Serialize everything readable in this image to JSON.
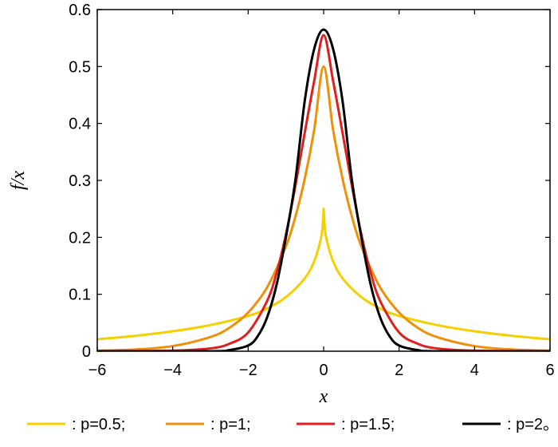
{
  "chart_data": {
    "type": "line",
    "xlabel": "x",
    "ylabel": "f/x",
    "xlim": [
      -6,
      6
    ],
    "ylim": [
      0,
      0.6
    ],
    "xticks": [
      -6,
      -4,
      -2,
      0,
      2,
      4,
      6
    ],
    "xtick_labels": [
      "−6",
      "−4",
      "−2",
      "0",
      "2",
      "4",
      "6"
    ],
    "yticks": [
      0,
      0.1,
      0.2,
      0.3,
      0.4,
      0.5,
      0.6
    ],
    "ytick_labels": [
      "0",
      "0.1",
      "0.2",
      "0.3",
      "0.4",
      "0.5",
      "0.6"
    ],
    "grid": false,
    "legend_position": "bottom",
    "series": [
      {
        "legend": ": p=0.5;",
        "color": "#f5d000",
        "x": [
          -6,
          -5,
          -4,
          -3,
          -2,
          -1.5,
          -1,
          -0.5,
          -0.25,
          -0.1,
          -0.03,
          0,
          0.03,
          0.1,
          0.25,
          0.5,
          1,
          1.5,
          2,
          3,
          4,
          5,
          6
        ],
        "y": [
          0.021,
          0.027,
          0.035,
          0.046,
          0.062,
          0.075,
          0.095,
          0.128,
          0.158,
          0.19,
          0.215,
          0.25,
          0.215,
          0.19,
          0.158,
          0.128,
          0.095,
          0.075,
          0.062,
          0.046,
          0.035,
          0.027,
          0.021
        ]
      },
      {
        "legend": ": p=1;",
        "color": "#f0900a",
        "x": [
          -6,
          -5,
          -4,
          -3,
          -2.5,
          -2,
          -1.5,
          -1,
          -0.75,
          -0.5,
          -0.25,
          0,
          0.25,
          0.5,
          0.75,
          1,
          1.5,
          2,
          2.5,
          3,
          4,
          5,
          6
        ],
        "y": [
          0.001,
          0.003,
          0.009,
          0.025,
          0.041,
          0.068,
          0.112,
          0.184,
          0.236,
          0.303,
          0.389,
          0.5,
          0.389,
          0.303,
          0.236,
          0.184,
          0.112,
          0.068,
          0.041,
          0.025,
          0.009,
          0.003,
          0.001
        ]
      },
      {
        "legend": ": p=1.5;",
        "color": "#e0201e",
        "x": [
          -6,
          -4,
          -3,
          -2.5,
          -2,
          -1.5,
          -1.25,
          -1,
          -0.75,
          -0.5,
          -0.25,
          0,
          0.25,
          0.5,
          0.75,
          1,
          1.25,
          1.5,
          2,
          2.5,
          3,
          4,
          6
        ],
        "y": [
          0,
          0.001,
          0.005,
          0.013,
          0.033,
          0.088,
          0.137,
          0.205,
          0.29,
          0.384,
          0.475,
          0.555,
          0.475,
          0.384,
          0.29,
          0.205,
          0.137,
          0.088,
          0.033,
          0.013,
          0.005,
          0.001,
          0
        ]
      },
      {
        "legend": ": p=2。",
        "color": "#000000",
        "x": [
          -6,
          -3,
          -2.5,
          -2,
          -1.75,
          -1.5,
          -1.25,
          -1,
          -0.75,
          -0.5,
          -0.25,
          0,
          0.25,
          0.5,
          0.75,
          1,
          1.25,
          1.5,
          1.75,
          2,
          2.5,
          3,
          6
        ],
        "y": [
          0,
          0,
          0.002,
          0.01,
          0.026,
          0.059,
          0.116,
          0.2,
          0.3,
          0.44,
          0.531,
          0.565,
          0.531,
          0.44,
          0.3,
          0.2,
          0.116,
          0.059,
          0.026,
          0.01,
          0.002,
          0,
          0
        ]
      }
    ]
  }
}
